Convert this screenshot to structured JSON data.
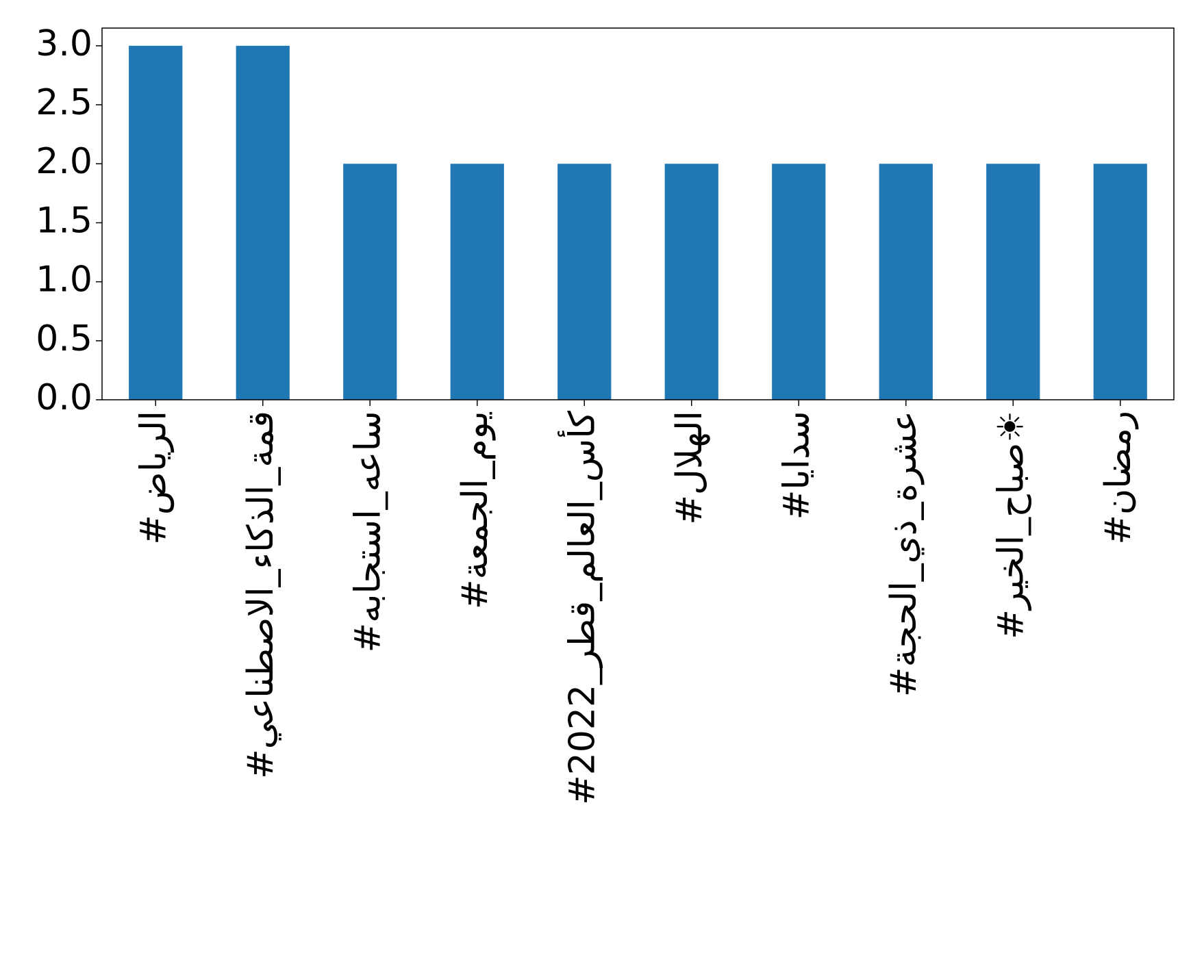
{
  "chart_data": {
    "type": "bar",
    "categories": [
      "#الرياض",
      "#قمة_الذكاء_الاصطناعي",
      "#ساعه_استجابه",
      "#يوم_الجمعة",
      "#كأس_العالم_قطر_2022",
      "#الهلال",
      "#سدايا",
      "#عشرة_ذي_الحجة",
      "#صباح_الخير☀",
      "#رمضان"
    ],
    "values": [
      3,
      3,
      2,
      2,
      2,
      2,
      2,
      2,
      2,
      2
    ],
    "color": "#1f77b4",
    "ylim": [
      0,
      3.15
    ],
    "yticks": [
      {
        "value": 0,
        "label": "0.0"
      },
      0.5,
      {
        "value": 1,
        "label": "1.0"
      },
      1.5,
      {
        "value": 2,
        "label": "2.0"
      },
      2.5,
      {
        "value": 3,
        "label": "3.0"
      }
    ],
    "grid": false
  }
}
